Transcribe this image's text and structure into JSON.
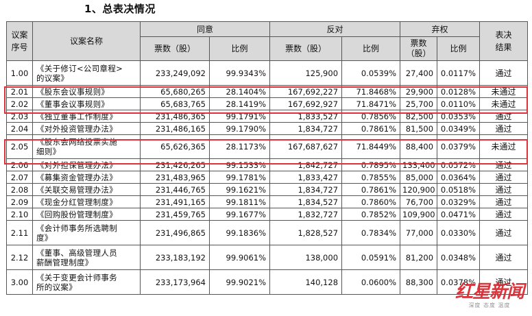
{
  "title": "1、总表决情况",
  "table": {
    "headers": {
      "seq": "议案\n序号",
      "name": "议案名称",
      "agree": "同意",
      "oppose": "反对",
      "abstain": "弃权",
      "result": "表决\n结果",
      "votes": "票数（股）",
      "votes_abstain": "票数\n（股）",
      "ratio": "比例"
    },
    "rows": [
      {
        "seq": "1.00",
        "name": "《关于修订<公司章程>\n的议案》",
        "agree": "233,249,092",
        "agree_pct": "99.9343%",
        "oppose": "125,900",
        "oppose_pct": "0.0539%",
        "abstain": "27,400",
        "abstain_pct": "0.0117%",
        "result": "通过"
      },
      {
        "seq": "2.01",
        "name": "《股东会议事规则》",
        "agree": "65,680,265",
        "agree_pct": "28.1404%",
        "oppose": "167,692,227",
        "oppose_pct": "71.8468%",
        "abstain": "29,900",
        "abstain_pct": "0.0128%",
        "result": "未通过"
      },
      {
        "seq": "2.02",
        "name": "《董事会议事规则》",
        "agree": "65,683,765",
        "agree_pct": "28.1419%",
        "oppose": "167,692,927",
        "oppose_pct": "71.8471%",
        "abstain": "25,700",
        "abstain_pct": "0.0110%",
        "result": "未通过"
      },
      {
        "seq": "2.03",
        "name": "《独立董事工作制度》",
        "agree": "231,486,365",
        "agree_pct": "99.1791%",
        "oppose": "1,833,527",
        "oppose_pct": "0.7856%",
        "abstain": "82,500",
        "abstain_pct": "0.0353%",
        "result": "通过"
      },
      {
        "seq": "2.04",
        "name": "《对外投资管理办法》",
        "agree": "231,486,165",
        "agree_pct": "99.1790%",
        "oppose": "1,834,727",
        "oppose_pct": "0.7861%",
        "abstain": "81,500",
        "abstain_pct": "0.0349%",
        "result": "通过"
      },
      {
        "seq": "2.05",
        "name": "《股东会网络投票实施\n细则》",
        "agree": "65,626,365",
        "agree_pct": "28.1173%",
        "oppose": "167,687,627",
        "oppose_pct": "71.8449%",
        "abstain": "88,400",
        "abstain_pct": "0.0379%",
        "result": "未通过"
      },
      {
        "seq": "2.06",
        "name": "《对外担保管理办法》",
        "agree": "231,426,265",
        "agree_pct": "99.1533%",
        "oppose": "1,842,727",
        "oppose_pct": "0.7895%",
        "abstain": "133,400",
        "abstain_pct": "0.0572%",
        "result": "通过"
      },
      {
        "seq": "2.07",
        "name": "《募集资金管理办法》",
        "agree": "231,483,965",
        "agree_pct": "99.1781%",
        "oppose": "1,833,427",
        "oppose_pct": "0.7855%",
        "abstain": "85,000",
        "abstain_pct": "0.0364%",
        "result": "通过"
      },
      {
        "seq": "2.08",
        "name": "《关联交易管理办法》",
        "agree": "231,446,765",
        "agree_pct": "99.1621%",
        "oppose": "1,834,727",
        "oppose_pct": "0.7861%",
        "abstain": "120,900",
        "abstain_pct": "0.0518%",
        "result": "通过"
      },
      {
        "seq": "2.09",
        "name": "《现金分红管理制度》",
        "agree": "231,491,165",
        "agree_pct": "99.1811%",
        "oppose": "1,834,527",
        "oppose_pct": "0.7860%",
        "abstain": "76,700",
        "abstain_pct": "0.0329%",
        "result": "通过"
      },
      {
        "seq": "2.10",
        "name": "《回购股份管理制度》",
        "agree": "231,459,765",
        "agree_pct": "99.1677%",
        "oppose": "1,832,727",
        "oppose_pct": "0.7852%",
        "abstain": "109,900",
        "abstain_pct": "0.0471%",
        "result": "通过"
      },
      {
        "seq": "2.11",
        "name": "《会计师事务所选聘制\n度》",
        "agree": "231,496,865",
        "agree_pct": "99.1836%",
        "oppose": "1,828,527",
        "oppose_pct": "0.7834%",
        "abstain": "77,000",
        "abstain_pct": "0.0330%",
        "result": "通过"
      },
      {
        "seq": "2.12",
        "name": "《董事、高级管理人员\n薪酬管理制度》",
        "agree": "233,183,192",
        "agree_pct": "99.9061%",
        "oppose": "138,000",
        "oppose_pct": "0.0591%",
        "abstain": "81,200",
        "abstain_pct": "0.0348%",
        "result": "通过"
      },
      {
        "seq": "3.00",
        "name": "《关于变更会计师事务\n所的议案》",
        "agree": "233,173,964",
        "agree_pct": "99.9021%",
        "oppose": "140,128",
        "oppose_pct": "0.0600%",
        "abstain": "88,300",
        "abstain_pct": "0.0378%",
        "result": "通过"
      }
    ]
  },
  "watermark": {
    "logo": "红星新闻",
    "slogan": "深度 态度 温度"
  },
  "colors": {
    "highlight": "#e0303a",
    "header_bg": "#d9d9d9"
  }
}
